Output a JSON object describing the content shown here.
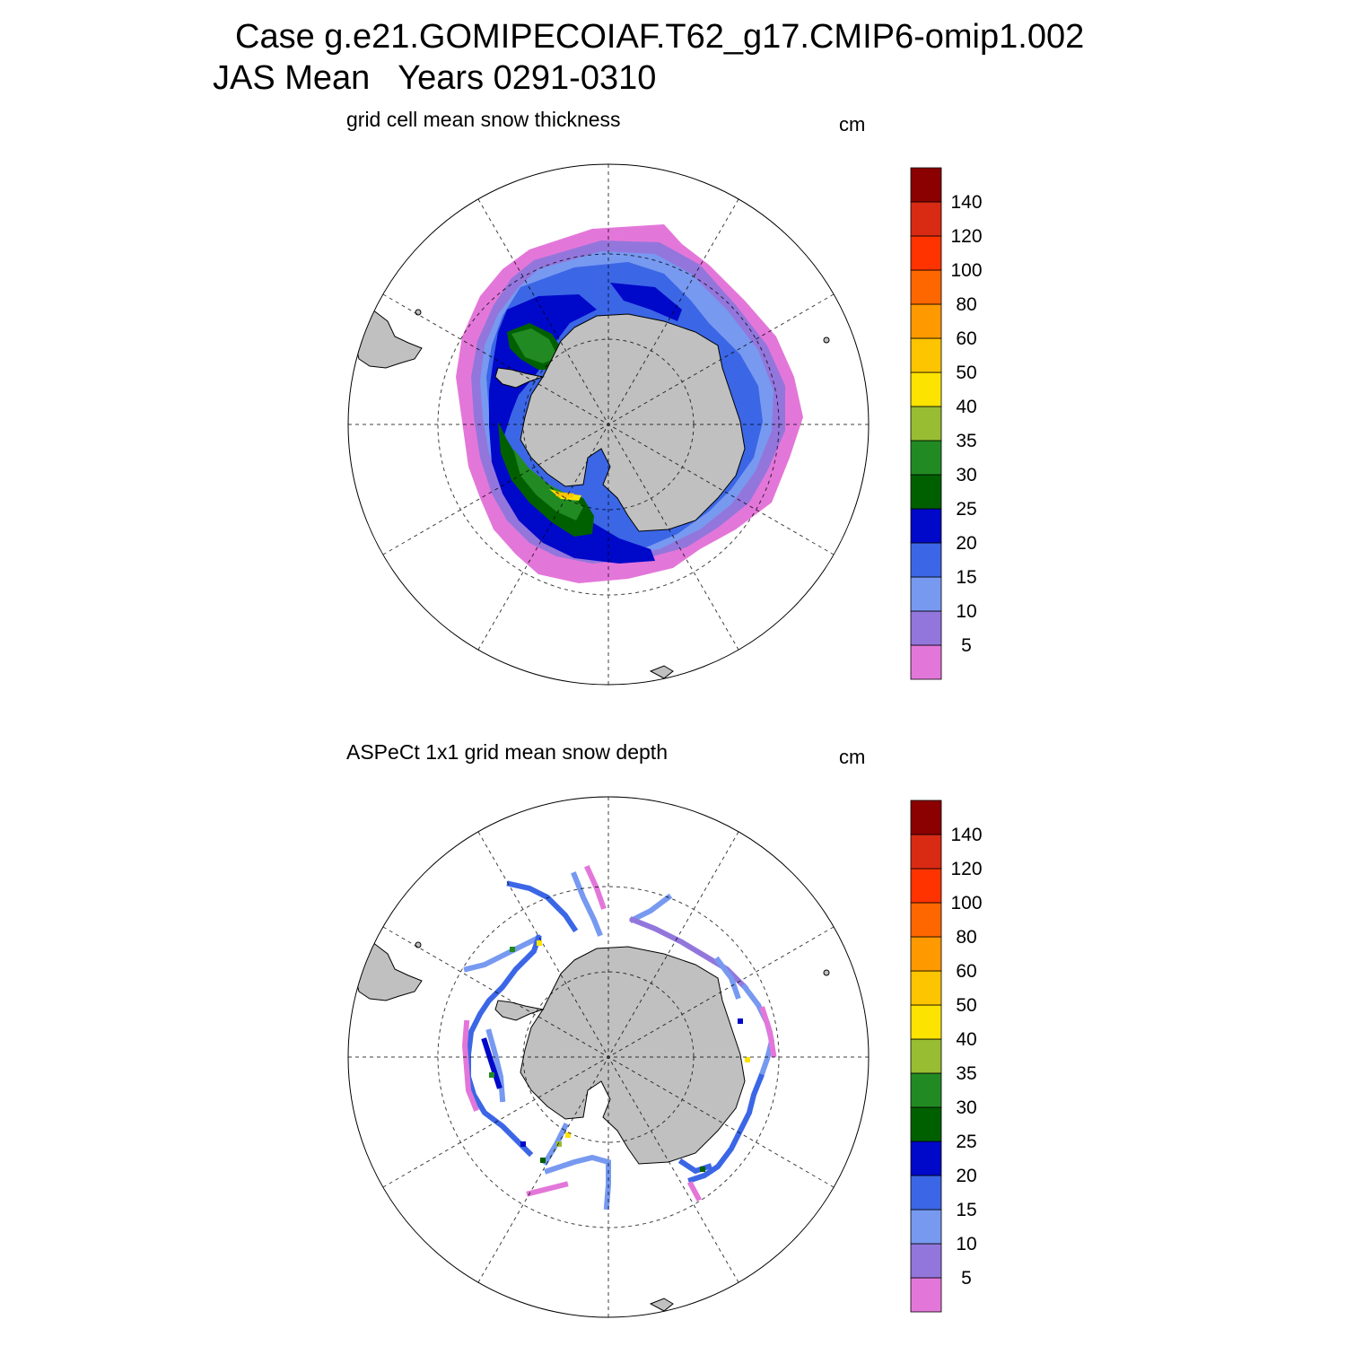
{
  "header": {
    "case_line": "Case g.e21.GOMIPECOIAF.T62_g17.CMIP6-omip1.002",
    "period_line": "JAS Mean   Years 0291-0310"
  },
  "panels": [
    {
      "title": "grid cell mean snow thickness",
      "units": "cm",
      "field": "model snow thickness (continuous field)"
    },
    {
      "title": "ASPeCt 1x1 grid mean snow depth",
      "units": "cm",
      "field": "ship-track observations (sparse tracks)"
    }
  ],
  "colorbar": {
    "labels": [
      "5",
      "10",
      "15",
      "20",
      "25",
      "30",
      "35",
      "40",
      "50",
      "60",
      "80",
      "100",
      "120",
      "140"
    ],
    "colors": [
      "#e377d9",
      "#9376dc",
      "#7799f0",
      "#3b66e6",
      "#0008c9",
      "#006000",
      "#228a22",
      "#98bd33",
      "#fde300",
      "#fdc400",
      "#fe9900",
      "#fe6600",
      "#fe3300",
      "#d92a14",
      "#8b0000"
    ]
  },
  "map_style": {
    "land_color": "#c0c0c0",
    "ocean_color": "#ffffff",
    "grid_line": "dashed"
  }
}
